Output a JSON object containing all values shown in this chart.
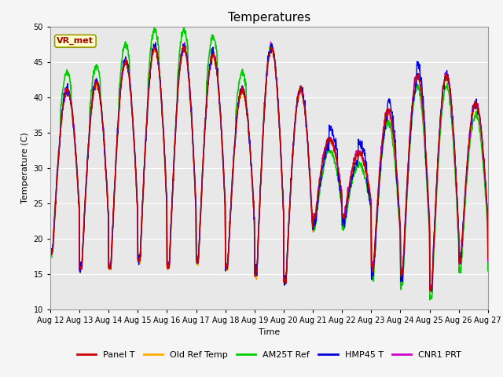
{
  "title": "Temperatures",
  "xlabel": "Time",
  "ylabel": "Temperature (C)",
  "ylim": [
    10,
    50
  ],
  "x_tick_labels": [
    "Aug 12",
    "Aug 13",
    "Aug 14",
    "Aug 15",
    "Aug 16",
    "Aug 17",
    "Aug 18",
    "Aug 19",
    "Aug 20",
    "Aug 21",
    "Aug 22",
    "Aug 23",
    "Aug 24",
    "Aug 25",
    "Aug 26",
    "Aug 27"
  ],
  "annotation_text": "VR_met",
  "annotation_box_facecolor": "#ffffcc",
  "annotation_box_edgecolor": "#999900",
  "annotation_text_color": "#aa0000",
  "bg_color": "#e8e8e8",
  "series_order": [
    "AM25T Ref",
    "Old Ref Temp",
    "CNR1 PRT",
    "HMP45 T",
    "Panel T"
  ],
  "legend_order": [
    "Panel T",
    "Old Ref Temp",
    "AM25T Ref",
    "HMP45 T",
    "CNR1 PRT"
  ],
  "series": {
    "Panel T": {
      "color": "#cc0000",
      "lw": 1.0
    },
    "Old Ref Temp": {
      "color": "#ffaa00",
      "lw": 1.0
    },
    "AM25T Ref": {
      "color": "#00cc00",
      "lw": 1.2
    },
    "HMP45 T": {
      "color": "#0000dd",
      "lw": 1.0
    },
    "CNR1 PRT": {
      "color": "#cc00cc",
      "lw": 1.0
    }
  },
  "yticks": [
    10,
    15,
    20,
    25,
    30,
    35,
    40,
    45,
    50
  ],
  "grid_color": "#ffffff",
  "grid_lw": 0.8,
  "n_days": 15,
  "pts_per_day": 96,
  "base_maxes": [
    41,
    42,
    45,
    47,
    47,
    46,
    41,
    47,
    41,
    34,
    32,
    38,
    43,
    43,
    39
  ],
  "base_mins": [
    18,
    16,
    16,
    17,
    16,
    17,
    16,
    15,
    14,
    23,
    23,
    16,
    15,
    13,
    17
  ],
  "am25_bumps_days": 7,
  "am25_bump_mag": 2.5,
  "fig_w": 6.4,
  "fig_h": 4.8,
  "dpi": 100
}
